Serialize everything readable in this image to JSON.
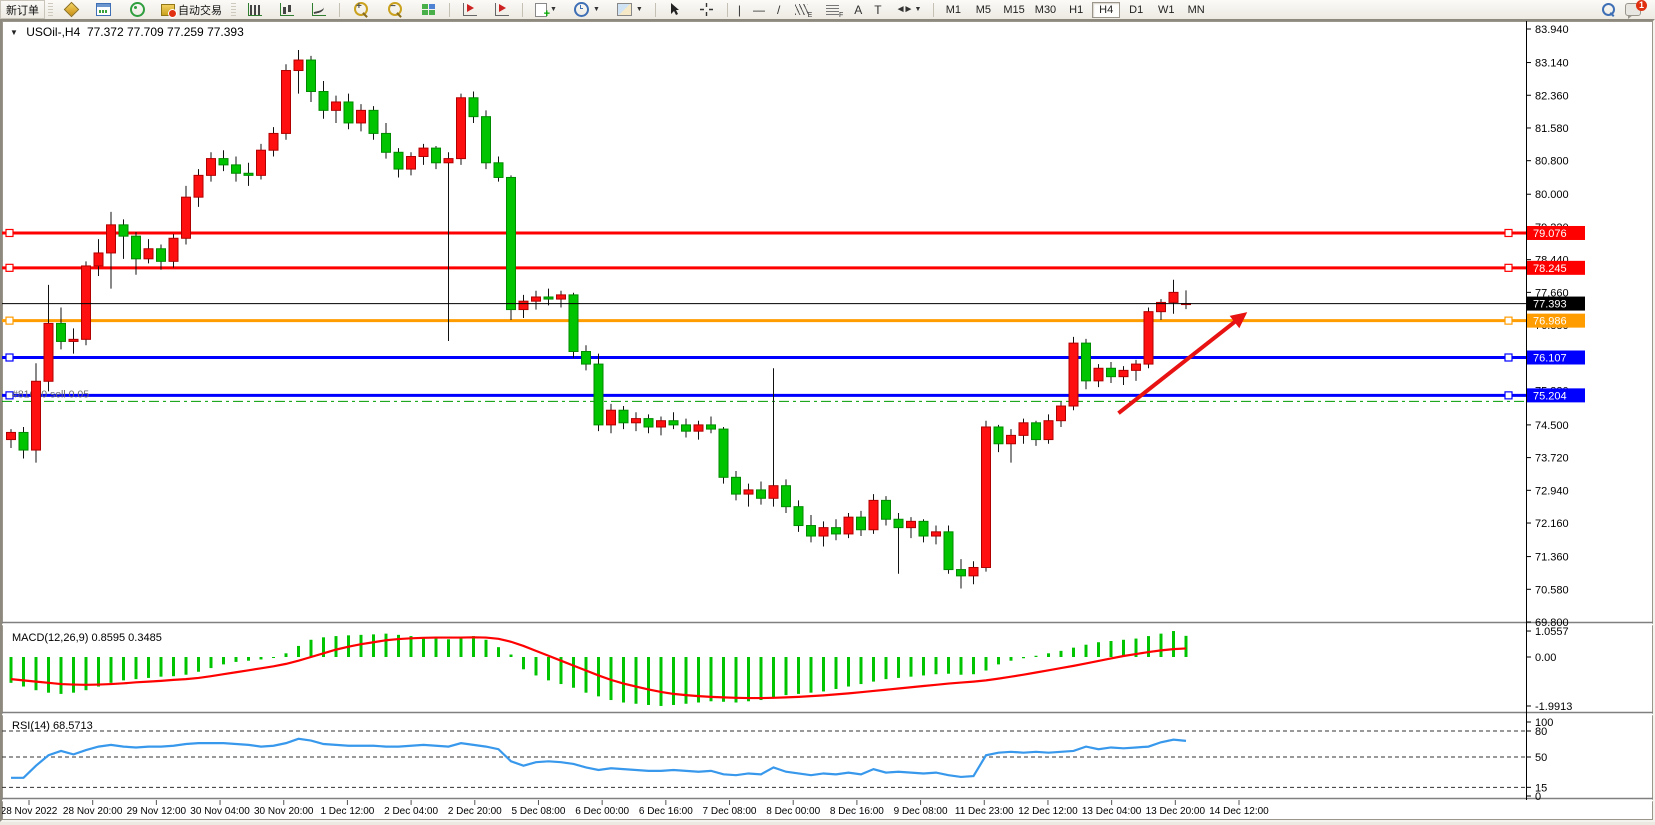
{
  "toolbar": {
    "new_order_label": "新订单",
    "autotrade_label": "自动交易",
    "timeframes": [
      "M1",
      "M5",
      "M15",
      "M30",
      "H1",
      "H4",
      "D1",
      "W1",
      "MN"
    ],
    "active_timeframe": "H4",
    "notification_count": "1",
    "tool_glyphs": {
      "text": "A",
      "label": "T",
      "channel_sub": "E",
      "fibo_sub": "F",
      "vline": "|",
      "hline": "—",
      "trend": "/",
      "arrows": "◄►"
    }
  },
  "chart": {
    "symbol_period": "USOil-,H4",
    "ohlc_readout": "77.372 77.709 77.259 77.393",
    "macd_label": "MACD(12,26,9) 0.8595 0.3485",
    "rsi_label": "RSI(14) 68.5713",
    "order_line_label": "#81620 sell 0.05"
  },
  "chart_data": {
    "type": "candlestick",
    "symbol": "USOil-",
    "period": "H4",
    "bull_color": "#ff1010",
    "bear_color": "#00c400",
    "price_axis": {
      "min": 69.8,
      "max": 83.94,
      "tick_labels": [
        "83.940",
        "83.140",
        "82.360",
        "81.580",
        "80.800",
        "80.000",
        "79.220",
        "78.440",
        "77.660",
        "76.880",
        "76.100",
        "75.320",
        "74.500",
        "73.720",
        "72.940",
        "72.160",
        "71.360",
        "70.580",
        "69.800"
      ]
    },
    "time_labels": [
      "28 Nov 2022",
      "28 Nov 20:00",
      "29 Nov 12:00",
      "30 Nov 04:00",
      "30 Nov 20:00",
      "1 Dec 12:00",
      "2 Dec 04:00",
      "2 Dec 20:00",
      "5 Dec 08:00",
      "6 Dec 00:00",
      "6 Dec 16:00",
      "7 Dec 08:00",
      "8 Dec 00:00",
      "8 Dec 16:00",
      "9 Dec 08:00",
      "11 Dec 23:00",
      "12 Dec 12:00",
      "13 Dec 04:00",
      "13 Dec 20:00",
      "14 Dec 12:00"
    ],
    "candles": [
      [
        74.15,
        74.4,
        73.95,
        74.32
      ],
      [
        74.32,
        74.45,
        73.7,
        73.9
      ],
      [
        73.9,
        75.97,
        73.6,
        75.54
      ],
      [
        75.54,
        77.84,
        75.3,
        76.92
      ],
      [
        76.92,
        77.3,
        76.3,
        76.49
      ],
      [
        76.49,
        76.8,
        76.2,
        76.54
      ],
      [
        76.54,
        78.4,
        76.4,
        78.29
      ],
      [
        78.29,
        78.93,
        78.05,
        78.6
      ],
      [
        78.6,
        79.58,
        77.75,
        79.27
      ],
      [
        79.27,
        79.4,
        78.46,
        79.0
      ],
      [
        79.0,
        79.1,
        78.08,
        78.46
      ],
      [
        78.46,
        78.93,
        78.35,
        78.7
      ],
      [
        78.7,
        78.8,
        78.2,
        78.4
      ],
      [
        78.4,
        79.05,
        78.25,
        78.95
      ],
      [
        78.95,
        80.2,
        78.8,
        79.93
      ],
      [
        79.93,
        80.6,
        79.7,
        80.45
      ],
      [
        80.45,
        81.0,
        80.3,
        80.85
      ],
      [
        80.85,
        81.05,
        80.55,
        80.7
      ],
      [
        80.7,
        80.9,
        80.3,
        80.5
      ],
      [
        80.5,
        80.75,
        80.2,
        80.45
      ],
      [
        80.45,
        81.2,
        80.35,
        81.05
      ],
      [
        81.05,
        81.6,
        80.9,
        81.45
      ],
      [
        81.45,
        83.1,
        81.3,
        82.95
      ],
      [
        82.95,
        83.44,
        82.4,
        83.2
      ],
      [
        83.2,
        83.3,
        82.2,
        82.45
      ],
      [
        82.45,
        82.7,
        81.8,
        82.0
      ],
      [
        82.0,
        82.35,
        81.7,
        82.2
      ],
      [
        82.2,
        82.4,
        81.55,
        81.7
      ],
      [
        81.7,
        82.15,
        81.5,
        82.0
      ],
      [
        82.0,
        82.1,
        81.3,
        81.45
      ],
      [
        81.45,
        81.7,
        80.85,
        81.0
      ],
      [
        81.0,
        81.1,
        80.4,
        80.6
      ],
      [
        80.6,
        81.0,
        80.45,
        80.9
      ],
      [
        80.9,
        81.2,
        80.7,
        81.1
      ],
      [
        81.1,
        81.15,
        80.6,
        80.75
      ],
      [
        80.75,
        81.0,
        76.5,
        80.85
      ],
      [
        80.85,
        82.4,
        80.7,
        82.3
      ],
      [
        82.3,
        82.45,
        81.7,
        81.85
      ],
      [
        81.85,
        82.0,
        80.6,
        80.75
      ],
      [
        80.75,
        80.9,
        80.3,
        80.4
      ],
      [
        80.4,
        80.45,
        77.0,
        77.25
      ],
      [
        77.25,
        77.6,
        77.05,
        77.45
      ],
      [
        77.45,
        77.7,
        77.25,
        77.55
      ],
      [
        77.55,
        77.75,
        77.35,
        77.5
      ],
      [
        77.5,
        77.7,
        77.3,
        77.6
      ],
      [
        77.6,
        77.65,
        76.1,
        76.25
      ],
      [
        76.25,
        76.4,
        75.8,
        75.95
      ],
      [
        75.95,
        76.2,
        74.35,
        74.5
      ],
      [
        74.5,
        75.0,
        74.3,
        74.85
      ],
      [
        74.85,
        74.95,
        74.4,
        74.55
      ],
      [
        74.55,
        74.8,
        74.35,
        74.65
      ],
      [
        74.65,
        74.75,
        74.3,
        74.45
      ],
      [
        74.45,
        74.7,
        74.25,
        74.6
      ],
      [
        74.6,
        74.8,
        74.4,
        74.5
      ],
      [
        74.5,
        74.65,
        74.2,
        74.35
      ],
      [
        74.35,
        74.6,
        74.15,
        74.5
      ],
      [
        74.5,
        74.7,
        74.3,
        74.4
      ],
      [
        74.4,
        74.45,
        73.1,
        73.25
      ],
      [
        73.25,
        73.4,
        72.7,
        72.85
      ],
      [
        72.85,
        73.1,
        72.55,
        72.95
      ],
      [
        72.95,
        73.15,
        72.6,
        72.75
      ],
      [
        72.75,
        75.85,
        72.55,
        73.05
      ],
      [
        73.05,
        73.2,
        72.4,
        72.55
      ],
      [
        72.55,
        72.7,
        71.95,
        72.1
      ],
      [
        72.1,
        72.35,
        71.7,
        71.85
      ],
      [
        71.85,
        72.2,
        71.6,
        72.05
      ],
      [
        72.05,
        72.25,
        71.75,
        71.9
      ],
      [
        71.9,
        72.4,
        71.8,
        72.3
      ],
      [
        72.3,
        72.45,
        71.85,
        72.0
      ],
      [
        72.0,
        72.85,
        71.9,
        72.7
      ],
      [
        72.7,
        72.8,
        72.1,
        72.25
      ],
      [
        72.25,
        72.4,
        70.95,
        72.05
      ],
      [
        72.05,
        72.3,
        71.8,
        72.2
      ],
      [
        72.2,
        72.25,
        71.7,
        71.85
      ],
      [
        71.85,
        72.1,
        71.65,
        71.95
      ],
      [
        71.95,
        72.1,
        70.95,
        71.05
      ],
      [
        71.05,
        71.3,
        70.6,
        70.9
      ],
      [
        70.9,
        71.25,
        70.7,
        71.1
      ],
      [
        71.1,
        74.6,
        71.0,
        74.45
      ],
      [
        74.45,
        74.5,
        73.85,
        74.05
      ],
      [
        74.05,
        74.4,
        73.6,
        74.25
      ],
      [
        74.25,
        74.65,
        74.05,
        74.55
      ],
      [
        74.55,
        74.6,
        74.0,
        74.15
      ],
      [
        74.15,
        74.75,
        74.05,
        74.6
      ],
      [
        74.6,
        75.05,
        74.45,
        74.95
      ],
      [
        74.95,
        76.6,
        74.85,
        76.45
      ],
      [
        76.45,
        76.55,
        75.35,
        75.55
      ],
      [
        75.55,
        75.95,
        75.4,
        75.85
      ],
      [
        75.85,
        76.0,
        75.5,
        75.65
      ],
      [
        75.65,
        75.9,
        75.45,
        75.8
      ],
      [
        75.8,
        76.05,
        75.55,
        75.95
      ],
      [
        75.95,
        77.3,
        75.85,
        77.2
      ],
      [
        77.2,
        77.5,
        77.0,
        77.42
      ],
      [
        77.42,
        77.96,
        77.15,
        77.66
      ],
      [
        77.372,
        77.709,
        77.259,
        77.393
      ]
    ],
    "hlines": [
      {
        "price": 79.076,
        "color": "#ff0000",
        "width": 3,
        "style": "solid",
        "axis_label": "79.076",
        "handles": true,
        "on_top": false
      },
      {
        "price": 78.245,
        "color": "#ff0000",
        "width": 3,
        "style": "solid",
        "axis_label": "78.245",
        "handles": true,
        "on_top": false
      },
      {
        "price": 76.986,
        "color": "#ff9c00",
        "width": 3,
        "style": "solid",
        "axis_label": "76.986",
        "handles": true,
        "on_top": false
      },
      {
        "price": 76.107,
        "color": "#0000ff",
        "width": 3,
        "style": "solid",
        "axis_label": "76.107",
        "handles": true,
        "on_top": false
      },
      {
        "price": 75.204,
        "color": "#0000ff",
        "width": 3,
        "style": "solid",
        "axis_label": "75.204",
        "handles": true,
        "on_top": false
      },
      {
        "price": 75.06,
        "color": "#009b00",
        "width": 1,
        "style": "dashdot",
        "axis_label": null,
        "handles": false,
        "on_top": false
      },
      {
        "price": 77.393,
        "color": "#000000",
        "width": 1,
        "style": "solid",
        "axis_label": "77.393",
        "handles": false,
        "on_top": true
      }
    ],
    "order_line": {
      "price": 75.06,
      "label": "#81620 sell 0.05"
    },
    "trend_arrow": {
      "from_index": 88.6,
      "from_price": 74.78,
      "to_index": 98.9,
      "to_price": 77.19,
      "color": "#e81212"
    },
    "macd": {
      "label": "MACD(12,26,9)",
      "value": 0.8595,
      "signal_value": 0.3485,
      "scale_max": 1.0557,
      "scale_min": -1.9913,
      "axis_ticks": [
        {
          "text": "1.0557",
          "v": 1.0557
        },
        {
          "text": "0.00",
          "v": 0.0
        },
        {
          "text": "-1.9913",
          "v": -1.9913
        }
      ],
      "hist_color": "#00c400",
      "signal_color": "#ff0000",
      "histogram": [
        -1.05,
        -1.2,
        -1.35,
        -1.45,
        -1.5,
        -1.45,
        -1.35,
        -1.2,
        -1.05,
        -0.95,
        -0.9,
        -0.85,
        -0.8,
        -0.78,
        -0.72,
        -0.6,
        -0.45,
        -0.3,
        -0.2,
        -0.15,
        -0.1,
        0.0,
        0.15,
        0.45,
        0.7,
        0.8,
        0.85,
        0.88,
        0.9,
        0.92,
        0.95,
        0.9,
        0.85,
        0.8,
        0.75,
        0.72,
        0.8,
        0.85,
        0.7,
        0.4,
        0.1,
        -0.5,
        -0.75,
        -0.95,
        -1.1,
        -1.25,
        -1.45,
        -1.6,
        -1.75,
        -1.85,
        -1.9,
        -1.95,
        -1.99,
        -1.95,
        -1.9,
        -1.85,
        -1.8,
        -1.82,
        -1.85,
        -1.8,
        -1.75,
        -1.65,
        -1.55,
        -1.5,
        -1.45,
        -1.4,
        -1.3,
        -1.2,
        -1.1,
        -1.0,
        -0.9,
        -0.85,
        -0.8,
        -0.75,
        -0.7,
        -0.68,
        -0.72,
        -0.7,
        -0.55,
        -0.3,
        -0.15,
        -0.05,
        0.05,
        0.15,
        0.25,
        0.38,
        0.5,
        0.6,
        0.65,
        0.7,
        0.75,
        0.85,
        0.95,
        1.0557,
        0.8595
      ],
      "signal": [
        -0.9,
        -0.95,
        -1.0,
        -1.05,
        -1.1,
        -1.12,
        -1.13,
        -1.12,
        -1.1,
        -1.07,
        -1.03,
        -1.0,
        -0.97,
        -0.93,
        -0.9,
        -0.85,
        -0.78,
        -0.7,
        -0.62,
        -0.54,
        -0.46,
        -0.38,
        -0.28,
        -0.15,
        0.0,
        0.15,
        0.3,
        0.42,
        0.52,
        0.6,
        0.68,
        0.73,
        0.76,
        0.78,
        0.79,
        0.79,
        0.79,
        0.8,
        0.79,
        0.74,
        0.62,
        0.45,
        0.25,
        0.05,
        -0.15,
        -0.35,
        -0.55,
        -0.75,
        -0.93,
        -1.08,
        -1.2,
        -1.32,
        -1.42,
        -1.5,
        -1.55,
        -1.59,
        -1.62,
        -1.64,
        -1.66,
        -1.67,
        -1.67,
        -1.66,
        -1.64,
        -1.62,
        -1.59,
        -1.56,
        -1.52,
        -1.48,
        -1.43,
        -1.38,
        -1.33,
        -1.28,
        -1.23,
        -1.18,
        -1.13,
        -1.08,
        -1.04,
        -1.0,
        -0.95,
        -0.88,
        -0.8,
        -0.72,
        -0.63,
        -0.54,
        -0.45,
        -0.36,
        -0.26,
        -0.16,
        -0.06,
        0.04,
        0.12,
        0.2,
        0.27,
        0.32,
        0.3485
      ]
    },
    "rsi": {
      "label": "RSI(14)",
      "value": 68.5713,
      "color": "#3898ec",
      "levels": [
        80,
        50,
        15
      ],
      "axis_ticks": [
        {
          "text": "100",
          "v": 100
        },
        {
          "text": "80",
          "v": 80
        },
        {
          "text": "50",
          "v": 50
        },
        {
          "text": "15",
          "v": 15
        },
        {
          "text": "0",
          "v": 0
        }
      ],
      "values": [
        26,
        26,
        40,
        52,
        57,
        53,
        58,
        62,
        64,
        62,
        61,
        62,
        62,
        63,
        65,
        66,
        66,
        66,
        65,
        64,
        62,
        63,
        66,
        71,
        69,
        65,
        64,
        63,
        63,
        63,
        62,
        62,
        63,
        64,
        63,
        62,
        66,
        64,
        62,
        59,
        45,
        40,
        44,
        45,
        44,
        42,
        38,
        35,
        37,
        36,
        35,
        34,
        34,
        35,
        34,
        33,
        34,
        30,
        29,
        31,
        30,
        38,
        33,
        31,
        29,
        31,
        30,
        32,
        30,
        36,
        32,
        33,
        32,
        31,
        32,
        29,
        27,
        28,
        52,
        55,
        56,
        55,
        56,
        55,
        56,
        57,
        62,
        59,
        61,
        60,
        61,
        62,
        67,
        70,
        68.57
      ]
    }
  }
}
